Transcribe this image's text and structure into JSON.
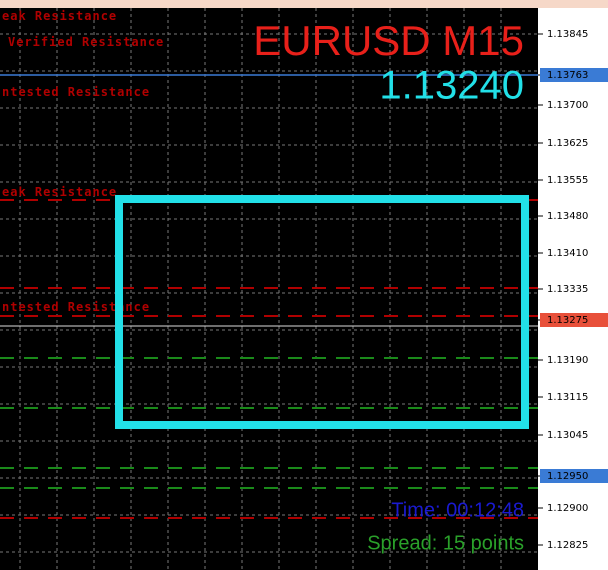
{
  "header": {
    "symbol": "EURUSD M15",
    "price": "1.13240"
  },
  "zones": [
    "eak Resistance",
    "Verified Resistance",
    "ntested Resistance",
    "eak Resistance",
    "ntested Resistance"
  ],
  "price_axis": [
    "1.13845",
    "1.13763",
    "1.13700",
    "1.13625",
    "1.13555",
    "1.13480",
    "1.13410",
    "1.13335",
    "1.13275",
    "1.13190",
    "1.13115",
    "1.13045",
    "1.12950",
    "1.12900",
    "1.12825"
  ],
  "footer": {
    "time": "Time: 00:12:48",
    "spread": "Spread: 15 points"
  }
}
